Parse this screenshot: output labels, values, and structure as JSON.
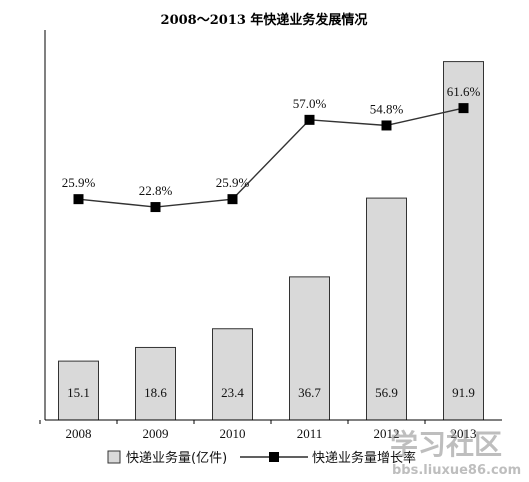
{
  "chart_data": {
    "type": "bar",
    "title": "2008～2013 年快递业务发展情况",
    "categories": [
      "2008",
      "2009",
      "2010",
      "2011",
      "2012",
      "2013"
    ],
    "series": [
      {
        "name": "快递业务量(亿件)",
        "type": "bar",
        "values": [
          15.1,
          18.6,
          23.4,
          36.7,
          56.9,
          91.9
        ],
        "color": "#d9d9d9"
      },
      {
        "name": "快递业务量增长率",
        "type": "line",
        "values": [
          25.9,
          22.8,
          25.9,
          57.0,
          54.8,
          61.6
        ],
        "unit": "%",
        "color": "#000000"
      }
    ],
    "bar_labels": [
      "15.1",
      "18.6",
      "23.4",
      "36.7",
      "56.9",
      "91.9"
    ],
    "line_labels": [
      "25.9%",
      "22.8%",
      "25.9%",
      "57.0%",
      "54.8%",
      "61.6%"
    ],
    "bar_ylim": [
      0,
      100
    ],
    "line_ylim": [
      -30,
      80
    ],
    "grid": false,
    "legend_position": "bottom"
  },
  "watermark": {
    "text": "学习社区",
    "url": "bbs.liuxue86.com"
  }
}
